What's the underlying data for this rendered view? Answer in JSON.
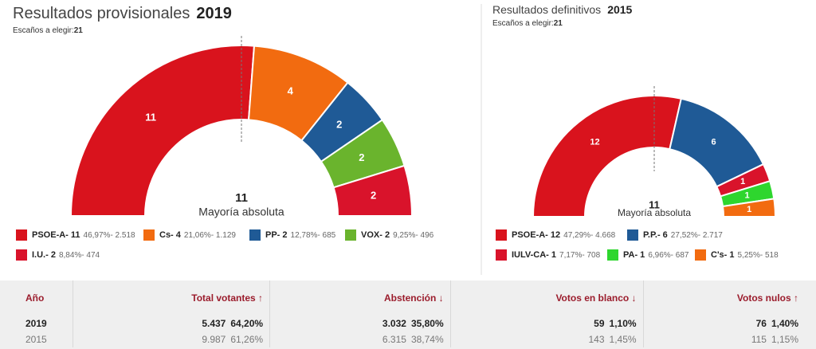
{
  "chart_data": [
    {
      "type": "semicircle",
      "title": "Resultados provisionales",
      "year": "2019",
      "subtitle": "Escaños a elegir:",
      "seats_total": 21,
      "categories": [
        "PSOE-A",
        "Cs",
        "PP",
        "VOX",
        "I.U."
      ],
      "values": [
        11,
        4,
        2,
        2,
        2
      ],
      "colors": [
        "#d9131d",
        "#f26b10",
        "#1f5a96",
        "#6ab42d",
        "#d9132b"
      ],
      "legend_labels": [
        "PSOE-A- 11",
        "Cs- 4",
        "PP- 2",
        "VOX- 2",
        "I.U.- 2"
      ],
      "legend_details": [
        "46,97%- 2.518",
        "21,06%- 1.129",
        "12,78%- 685",
        "9,25%- 496",
        "8,84%- 474"
      ],
      "majority": 11,
      "majority_label": "Mayoría absoluta"
    },
    {
      "type": "semicircle",
      "title": "Resultados definitivos",
      "year": "2015",
      "subtitle": "Escaños a elegir:",
      "seats_total": 21,
      "categories": [
        "PSOE-A",
        "P.P.",
        "IULV-CA",
        "PA",
        "C's"
      ],
      "values": [
        12,
        6,
        1,
        1,
        1
      ],
      "colors": [
        "#d9131d",
        "#1f5a96",
        "#d9132b",
        "#2ed62e",
        "#f26b10"
      ],
      "legend_labels": [
        "PSOE-A- 12",
        "P.P.- 6",
        "IULV-CA- 1",
        "PA- 1",
        "C's- 1"
      ],
      "legend_details": [
        "47,29%- 4.668",
        "27,52%- 2.717",
        "7,17%- 708",
        "6,96%- 687",
        "5,25%- 518"
      ],
      "majority": 11,
      "majority_label": "Mayoría absoluta"
    }
  ],
  "table": {
    "headers": [
      "Año",
      "Total votantes ↑",
      "Abstención ↓",
      "Votos en blanco ↓",
      "Votos nulos ↑"
    ],
    "rows": [
      [
        "2019",
        "5.437",
        "64,20%",
        "3.032",
        "35,80%",
        "59",
        "1,10%",
        "76",
        "1,40%"
      ],
      [
        "2015",
        "9.987",
        "61,26%",
        "6.315",
        "38,74%",
        "143",
        "1,45%",
        "115",
        "1,15%"
      ]
    ]
  }
}
